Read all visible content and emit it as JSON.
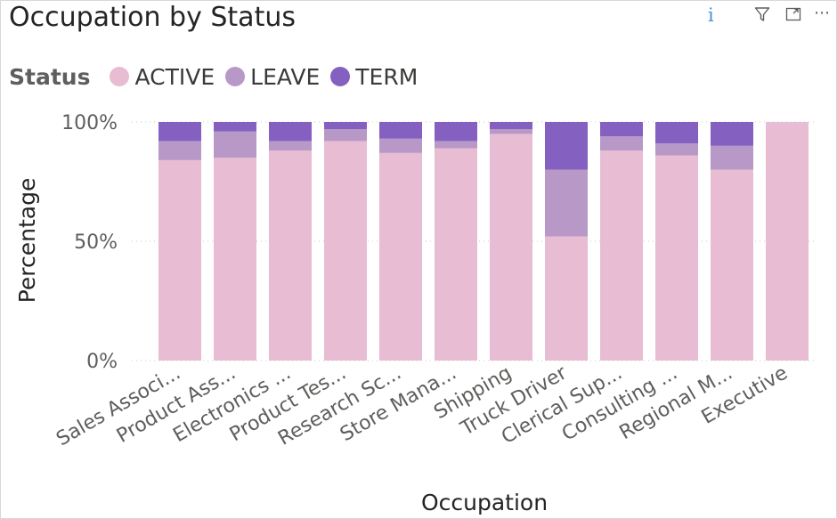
{
  "header": {
    "title": "Occupation by Status",
    "icons": [
      "info-icon",
      "filter-icon",
      "focus-mode-icon",
      "more-options-icon"
    ],
    "info_glyph": "i",
    "more_glyph": "⋯"
  },
  "legend": {
    "title": "Status",
    "items": [
      {
        "label": "ACTIVE",
        "color": "#e8bcd3"
      },
      {
        "label": "LEAVE",
        "color": "#b898c6"
      },
      {
        "label": "TERM",
        "color": "#8461c0"
      }
    ]
  },
  "chart_data": {
    "type": "bar",
    "stacked": "100%",
    "title": "Occupation by Status",
    "xlabel": "Occupation",
    "ylabel": "Percentage",
    "ylim": [
      0,
      100
    ],
    "yticks": [
      {
        "value": 0,
        "label": "0%"
      },
      {
        "value": 50,
        "label": "50%"
      },
      {
        "value": 100,
        "label": "100%"
      }
    ],
    "grid": true,
    "legend_position": "top-left",
    "categories": [
      "Sales Associ...",
      "Product Ass...",
      "Electronics ...",
      "Product Tes...",
      "Research Sc...",
      "Store Mana...",
      "Shipping",
      "Truck Driver",
      "Clerical Sup...",
      "Consulting ...",
      "Regional M...",
      "Executive"
    ],
    "series": [
      {
        "name": "ACTIVE",
        "color": "#e8bcd3",
        "values": [
          84,
          85,
          88,
          92,
          87,
          89,
          95,
          52,
          88,
          86,
          80,
          100
        ]
      },
      {
        "name": "LEAVE",
        "color": "#b898c6",
        "values": [
          8,
          11,
          4,
          5,
          6,
          3,
          2,
          28,
          6,
          5,
          10,
          0
        ]
      },
      {
        "name": "TERM",
        "color": "#8461c0",
        "values": [
          8,
          4,
          8,
          3,
          7,
          8,
          3,
          20,
          6,
          9,
          10,
          0
        ]
      }
    ]
  }
}
